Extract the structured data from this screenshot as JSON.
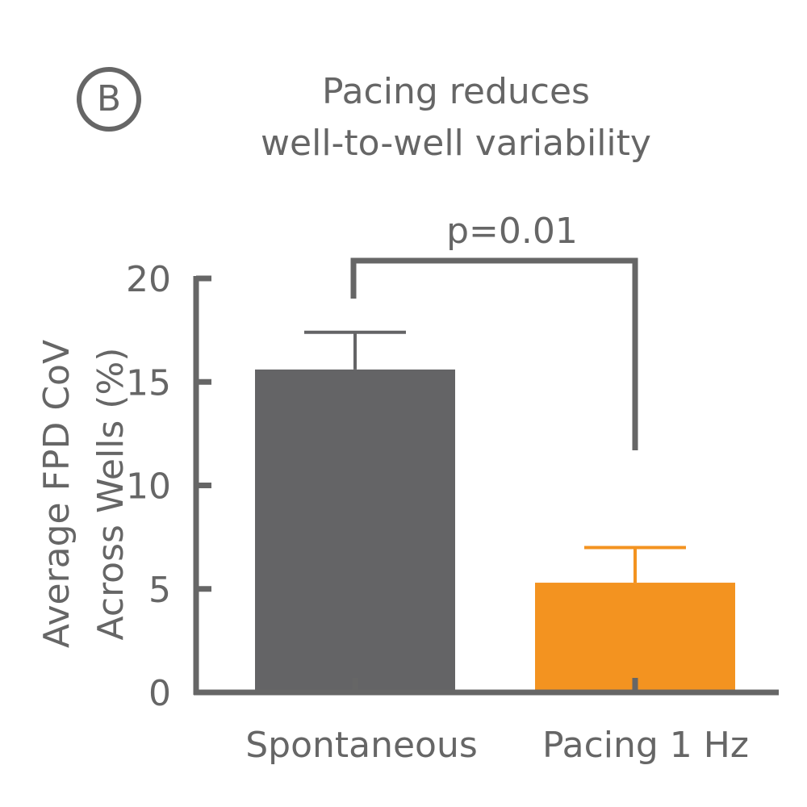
{
  "panel_label": "B",
  "colors": {
    "axis": "#666666",
    "text": "#666666",
    "spontaneous": "#646466",
    "pacing": "#f39320"
  },
  "chart_data": {
    "type": "bar",
    "title_lines": [
      "Pacing reduces",
      "well-to-well variability"
    ],
    "categories": [
      "Spontaneous",
      "Pacing 1 Hz"
    ],
    "values": [
      15.6,
      5.3
    ],
    "errors": [
      1.8,
      1.7
    ],
    "ylabel_lines": [
      "Average FPD CoV",
      "Across Wells (%)"
    ],
    "xlabel": "",
    "ylim": [
      0,
      20
    ],
    "yticks": [
      "0",
      "5",
      "10",
      "15",
      "20"
    ],
    "grid": false,
    "legend": "none",
    "significance": {
      "label": "p=0.01",
      "between": [
        0,
        1
      ]
    }
  }
}
